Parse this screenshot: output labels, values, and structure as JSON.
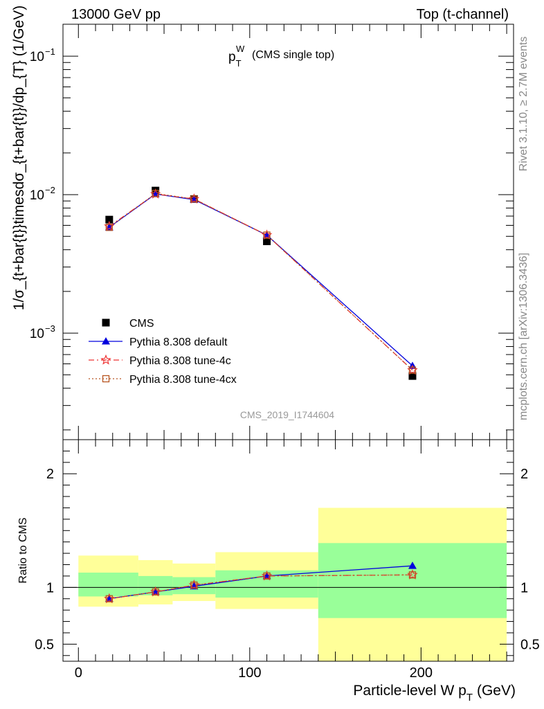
{
  "header": {
    "left": "13000 GeV pp",
    "right": "Top (t-channel)"
  },
  "side": {
    "rivet": "Rivet 3.1.10, ≥ 2.7M events",
    "mcplots": "mcplots.cern.ch [arXiv:1306.3436]"
  },
  "watermark": "CMS_2019_I1744604",
  "chart_data": [
    {
      "type": "line",
      "title_main": "p",
      "title_sub": "T",
      "title_sup": "W",
      "title_note": "(CMS single top)",
      "ylabel": "1/σ_{t+bar{t}}timesdσ_{t+bar{t}}/dp_{T}   (1/GeV)",
      "yscale": "log",
      "ylim": [
        0.00017,
        0.17
      ],
      "xlim": [
        -9,
        254
      ],
      "yticks": [
        {
          "value": 0.1,
          "base": "10",
          "exp": "−1"
        },
        {
          "value": 0.01,
          "base": "10",
          "exp": "−2"
        },
        {
          "value": 0.001,
          "base": "10",
          "exp": "−3"
        }
      ],
      "x": [
        18,
        45,
        67.5,
        110,
        195
      ],
      "series": [
        {
          "name": "CMS",
          "color": "#000000",
          "marker": "square",
          "line": "none",
          "values": [
            0.0066,
            0.0107,
            0.0093,
            0.0046,
            0.00049
          ]
        },
        {
          "name": "Pythia 8.308 default",
          "color": "#0000dd",
          "marker": "triangle",
          "line": "solid",
          "values": [
            0.0058,
            0.0101,
            0.0092,
            0.0051,
            0.00058
          ]
        },
        {
          "name": "Pythia 8.308 tune-4c",
          "color": "#ee3333",
          "marker": "star",
          "line": "dashdot",
          "values": [
            0.0059,
            0.0101,
            0.0093,
            0.0051,
            0.00054
          ]
        },
        {
          "name": "Pythia 8.308 tune-4cx",
          "color": "#b85420",
          "marker": "opensquare",
          "line": "dotted",
          "values": [
            0.0058,
            0.0102,
            0.0093,
            0.0051,
            0.00054
          ]
        }
      ]
    },
    {
      "type": "line",
      "ylabel": "Ratio to CMS",
      "xlabel_main": "Particle-level W p",
      "xlabel_sub": "T",
      "xlabel_unit": "(GeV)",
      "xlim": [
        -9,
        254
      ],
      "ylim": [
        0.35,
        2.3
      ],
      "yticks": [
        {
          "value": 0.5,
          "label": "0.5"
        },
        {
          "value": 1,
          "label": "1"
        },
        {
          "value": 2,
          "label": "2"
        }
      ],
      "xticks": [
        {
          "value": 0,
          "label": "0"
        },
        {
          "value": 100,
          "label": "100"
        },
        {
          "value": 200,
          "label": "200"
        }
      ],
      "bands": [
        {
          "x0": 0,
          "x1": 35,
          "outer": [
            0.83,
            1.28
          ],
          "inner": [
            0.92,
            1.13
          ]
        },
        {
          "x0": 35,
          "x1": 55,
          "outer": [
            0.85,
            1.24
          ],
          "inner": [
            0.93,
            1.1
          ]
        },
        {
          "x0": 55,
          "x1": 80,
          "outer": [
            0.88,
            1.21
          ],
          "inner": [
            0.94,
            1.09
          ]
        },
        {
          "x0": 80,
          "x1": 140,
          "outer": [
            0.81,
            1.31
          ],
          "inner": [
            0.91,
            1.15
          ]
        },
        {
          "x0": 140,
          "x1": 250,
          "outer": [
            0.35,
            1.7
          ],
          "inner": [
            0.73,
            1.39
          ]
        }
      ],
      "band_colors": {
        "outer": "#ffff99",
        "inner": "#99ff99"
      },
      "x": [
        18,
        45,
        67.5,
        110,
        195
      ],
      "series": [
        {
          "name": "Pythia 8.308 default",
          "color": "#0000dd",
          "marker": "triangle",
          "line": "solid",
          "values": [
            0.9,
            0.96,
            1.01,
            1.1,
            1.19
          ]
        },
        {
          "name": "Pythia 8.308 tune-4c",
          "color": "#ee3333",
          "marker": "star",
          "line": "dashdot",
          "values": [
            0.9,
            0.96,
            1.02,
            1.1,
            1.11
          ]
        },
        {
          "name": "Pythia 8.308 tune-4cx",
          "color": "#b85420",
          "marker": "opensquare",
          "line": "dotted",
          "values": [
            0.9,
            0.96,
            1.02,
            1.1,
            1.11
          ]
        }
      ]
    }
  ]
}
